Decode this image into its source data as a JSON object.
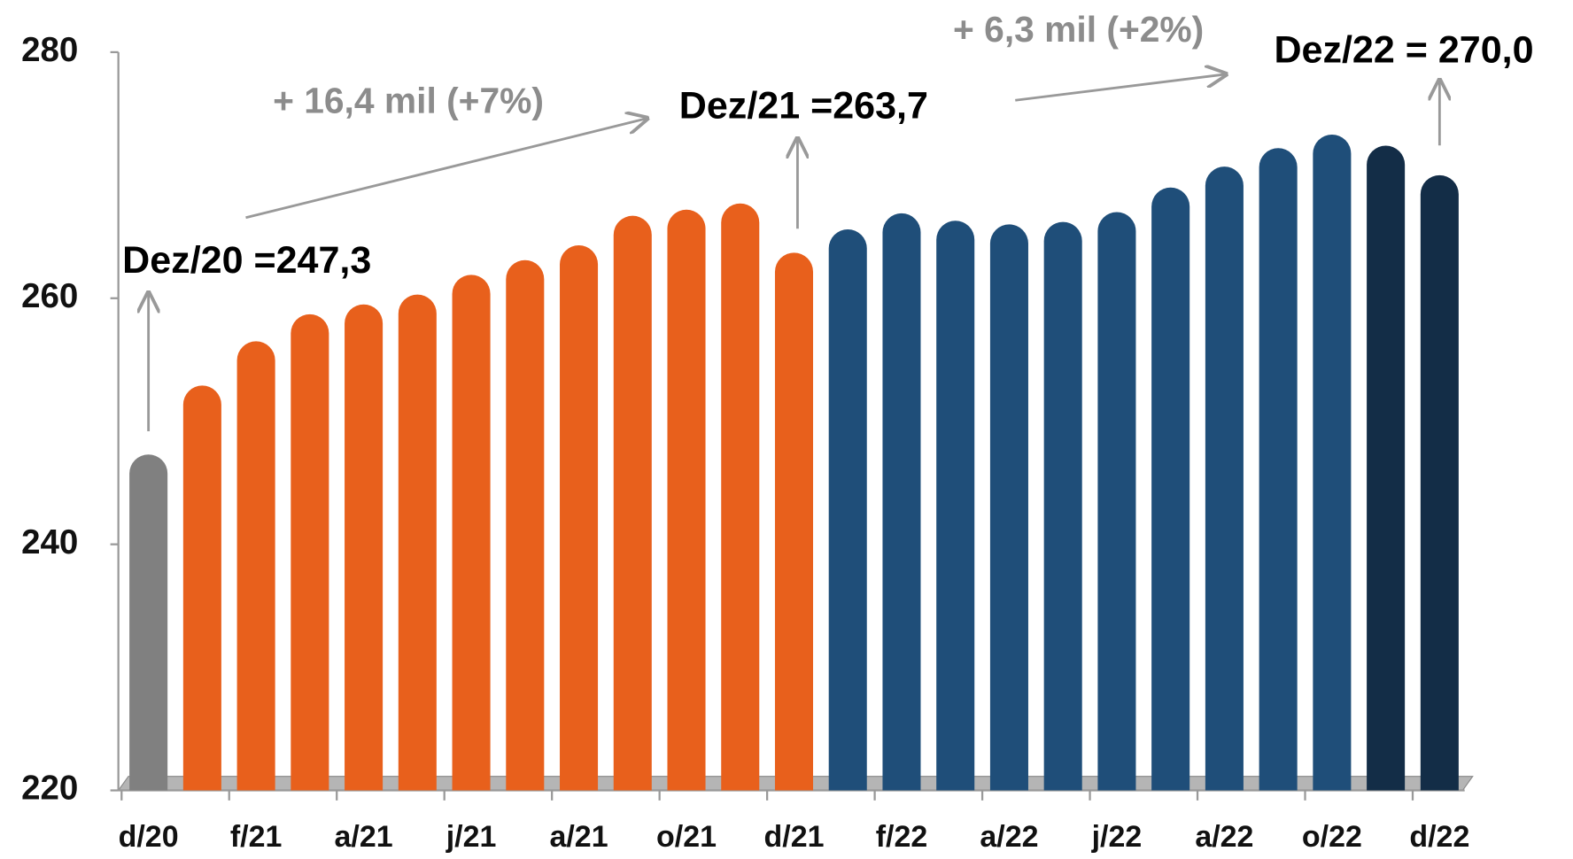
{
  "chart_data": {
    "type": "bar",
    "categories": [
      "d/20",
      null,
      "f/21",
      null,
      "a/21",
      null,
      "j/21",
      null,
      "a/21",
      null,
      "o/21",
      null,
      "d/21",
      null,
      "f/22",
      null,
      "a/22",
      null,
      "j/22",
      null,
      "a/22",
      null,
      "o/22",
      null,
      "d/22"
    ],
    "values": [
      247.3,
      252.9,
      256.5,
      258.7,
      259.5,
      260.3,
      261.9,
      263.1,
      264.3,
      266.7,
      267.2,
      267.7,
      263.7,
      265.6,
      266.9,
      266.3,
      266.0,
      266.2,
      267.0,
      269.0,
      270.7,
      272.2,
      273.3,
      272.4,
      270.0
    ],
    "colors": [
      "#808080",
      "#e8601c",
      "#e8601c",
      "#e8601c",
      "#e8601c",
      "#e8601c",
      "#e8601c",
      "#e8601c",
      "#e8601c",
      "#e8601c",
      "#e8601c",
      "#e8601c",
      "#e8601c",
      "#1f4e79",
      "#1f4e79",
      "#1f4e79",
      "#1f4e79",
      "#1f4e79",
      "#1f4e79",
      "#1f4e79",
      "#1f4e79",
      "#1f4e79",
      "#1f4e79",
      "#132d47",
      "#132d47"
    ],
    "ylim": [
      220,
      280
    ],
    "yticks": [
      220,
      240,
      260,
      280
    ],
    "grid": false,
    "annotations": [
      "Dez/20 =247,3",
      "Dez/21 =263,7",
      "Dez/22 = 270,0",
      "+ 16,4 mil (+7%)",
      "+ 6,3 mil (+2%)"
    ]
  }
}
